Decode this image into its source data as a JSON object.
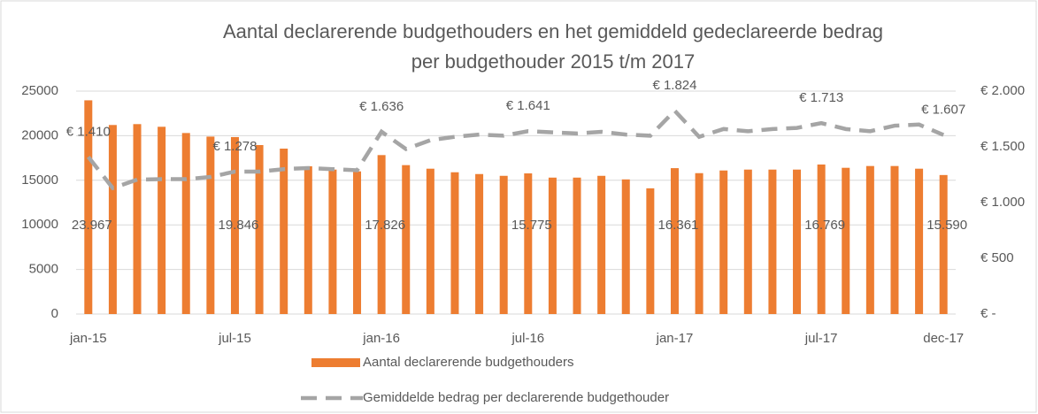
{
  "chart_data": {
    "type": "bar",
    "title": [
      "Aantal declarerende budgethouders en het gemiddeld gedeclareerde bedrag",
      "per budgethouder 2015 t/m 2017"
    ],
    "categories": [
      "jan-15",
      null,
      null,
      null,
      null,
      null,
      "jul-15",
      null,
      null,
      null,
      null,
      null,
      "jan-16",
      null,
      null,
      null,
      null,
      null,
      "jul-16",
      null,
      null,
      null,
      null,
      null,
      "jan-17",
      null,
      null,
      null,
      null,
      null,
      "jul-17",
      null,
      null,
      null,
      null,
      "dec-17"
    ],
    "series": [
      {
        "name": "Aantal declarerende budgethouders",
        "type": "bar",
        "color": "#ed7d31",
        "values": [
          23967,
          21200,
          21300,
          21000,
          20300,
          19900,
          19846,
          18950,
          18550,
          16570,
          16200,
          16000,
          17826,
          16700,
          16300,
          15900,
          15700,
          15500,
          15775,
          15300,
          15300,
          15500,
          15100,
          14100,
          16361,
          15800,
          16100,
          16200,
          16200,
          16200,
          16769,
          16400,
          16600,
          16600,
          16300,
          15590
        ],
        "value_labels": [
          "23.967",
          null,
          null,
          null,
          null,
          null,
          "19.846",
          null,
          null,
          null,
          null,
          null,
          "17.826",
          null,
          null,
          null,
          null,
          null,
          "15.775",
          null,
          null,
          null,
          null,
          null,
          "16.361",
          null,
          null,
          null,
          null,
          null,
          "16.769",
          null,
          null,
          null,
          null,
          "15.590"
        ]
      },
      {
        "name": "Gemiddelde bedrag per declarerende budgethouder",
        "type": "line",
        "axis": "y2",
        "color": "#a5a5a5",
        "line_style": "dashed",
        "values": [
          1410,
          1130,
          1206,
          1210,
          1210,
          1230,
          1278,
          1278,
          1300,
          1310,
          1300,
          1290,
          1636,
          1480,
          1560,
          1590,
          1610,
          1600,
          1641,
          1630,
          1620,
          1635,
          1610,
          1600,
          1824,
          1590,
          1660,
          1640,
          1660,
          1670,
          1713,
          1660,
          1640,
          1690,
          1700,
          1607
        ],
        "value_labels": [
          "€ 1.410",
          null,
          null,
          null,
          null,
          null,
          "€ 1.278",
          null,
          null,
          null,
          null,
          null,
          "€ 1.636",
          null,
          null,
          null,
          null,
          null,
          "€ 1.641",
          null,
          null,
          null,
          null,
          null,
          "€ 1.824",
          null,
          null,
          null,
          null,
          null,
          "€ 1.713",
          null,
          null,
          null,
          null,
          "€ 1.607"
        ]
      }
    ],
    "ylim": [
      0,
      25000
    ],
    "yticks": [
      0,
      5000,
      10000,
      15000,
      20000,
      25000
    ],
    "y2lim": [
      0,
      2000
    ],
    "y2ticks": [
      {
        "value": 0,
        "label": "€ -"
      },
      {
        "value": 500,
        "label": "€ 500"
      },
      {
        "value": 1000,
        "label": "€ 1.000"
      },
      {
        "value": 1500,
        "label": "€ 1.500"
      },
      {
        "value": 2000,
        "label": "€ 2.000"
      }
    ],
    "grid": true,
    "legend": "bottom"
  }
}
